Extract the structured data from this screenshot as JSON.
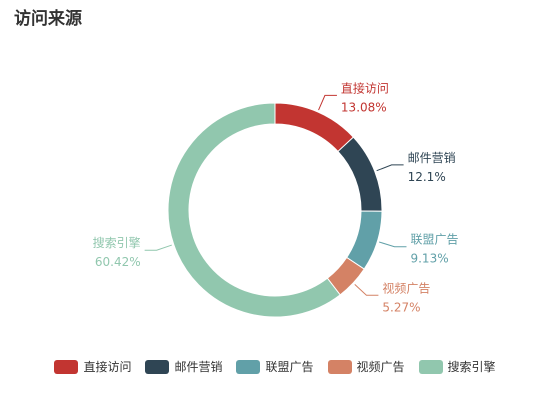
{
  "title": "访问来源",
  "colors": [
    "#c23531",
    "#2f4554",
    "#61a0a8",
    "#d48265",
    "#91c7ae"
  ],
  "chart_data": {
    "type": "pie",
    "variant": "donut",
    "title": "访问来源",
    "series": [
      {
        "name": "直接访问",
        "value": 13.08,
        "label": "13.08%"
      },
      {
        "name": "邮件营销",
        "value": 12.1,
        "label": "12.1%"
      },
      {
        "name": "联盟广告",
        "value": 9.13,
        "label": "9.13%"
      },
      {
        "name": "视频广告",
        "value": 5.27,
        "label": "5.27%"
      },
      {
        "name": "搜索引擎",
        "value": 60.42,
        "label": "60.42%"
      }
    ],
    "legend_position": "bottom"
  }
}
